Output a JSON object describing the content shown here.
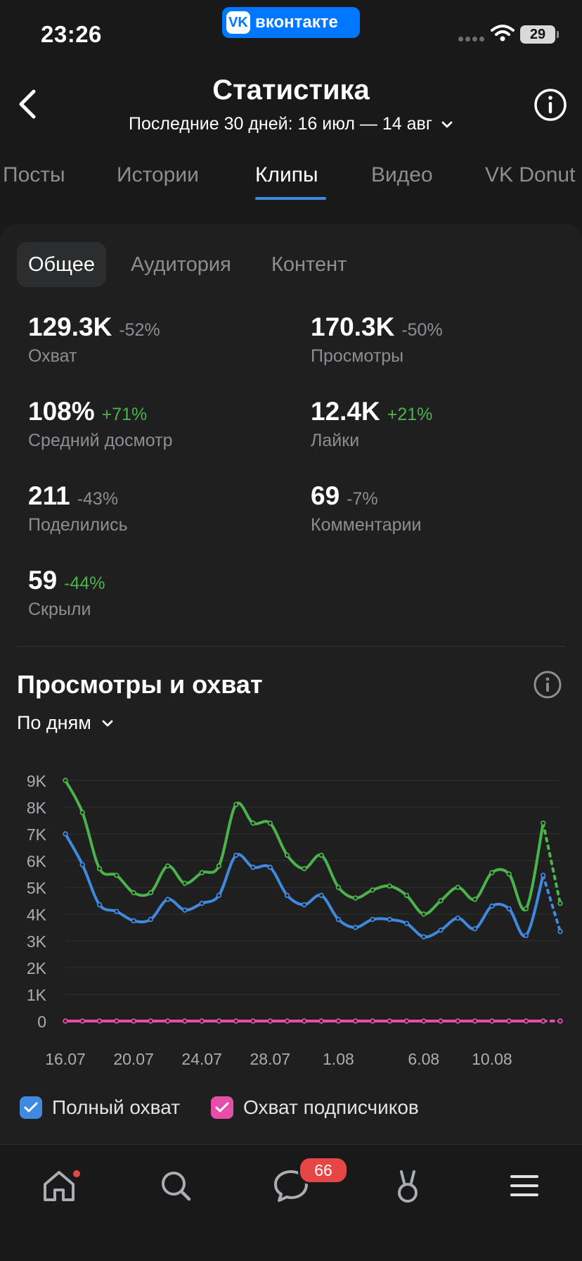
{
  "status_bar": {
    "time": "23:26",
    "app_pill": "вконтакте",
    "app_logo": "VK",
    "battery": "29"
  },
  "header": {
    "title": "Статистика",
    "period": "Последние 30 дней: 16 июл — 14 авг"
  },
  "tabs": [
    {
      "label": "Посты",
      "active": false
    },
    {
      "label": "Истории",
      "active": false
    },
    {
      "label": "Клипы",
      "active": true
    },
    {
      "label": "Видео",
      "active": false
    },
    {
      "label": "VK Donut",
      "active": false
    }
  ],
  "segments": [
    {
      "label": "Общее",
      "active": true
    },
    {
      "label": "Аудитория",
      "active": false
    },
    {
      "label": "Контент",
      "active": false
    }
  ],
  "metrics": [
    {
      "value": "129.3K",
      "delta": "-52%",
      "label": "Охват"
    },
    {
      "value": "170.3K",
      "delta": "-50%",
      "label": "Просмотры"
    },
    {
      "value": "108%",
      "delta": "+71%",
      "label": "Средний досмотр"
    },
    {
      "value": "12.4K",
      "delta": "+21%",
      "label": "Лайки"
    },
    {
      "value": "211",
      "delta": "-43%",
      "label": "Поделились"
    },
    {
      "value": "69",
      "delta": "-7%",
      "label": "Комментарии"
    },
    {
      "value": "59",
      "delta": "-44%",
      "label": "Скрыли"
    }
  ],
  "chart_section": {
    "title": "Просмотры и охват",
    "grouping": "По дням"
  },
  "chart_data": {
    "type": "line",
    "ylim": [
      0,
      9000
    ],
    "y_ticks": [
      "0",
      "1K",
      "2K",
      "3K",
      "4K",
      "5K",
      "6K",
      "7K",
      "8K",
      "9K"
    ],
    "x_ticks": [
      "16.07",
      "20.07",
      "24.07",
      "28.07",
      "1.08",
      "6.08",
      "10.08"
    ],
    "x_tick_index": [
      0,
      4,
      8,
      12,
      16,
      21,
      25
    ],
    "grid": true,
    "projected_last_point": true,
    "series": [
      {
        "key": "green",
        "color": "#4bb34b",
        "values": [
          9000,
          7800,
          5700,
          5450,
          4800,
          4800,
          5800,
          5150,
          5550,
          5800,
          8100,
          7400,
          7400,
          6200,
          5700,
          6200,
          5000,
          4600,
          4900,
          5050,
          4700,
          4000,
          4500,
          5000,
          4550,
          5550,
          5500,
          4200,
          7400,
          4400
        ]
      },
      {
        "key": "blue",
        "color": "#3f8ae0",
        "values": [
          7000,
          5850,
          4350,
          4100,
          3750,
          3800,
          4550,
          4150,
          4400,
          4700,
          6200,
          5750,
          5750,
          4700,
          4350,
          4700,
          3800,
          3500,
          3800,
          3800,
          3650,
          3150,
          3400,
          3850,
          3450,
          4300,
          4200,
          3200,
          5450,
          3350
        ]
      },
      {
        "key": "pink",
        "color": "#e64ea9",
        "values": [
          0,
          0,
          0,
          0,
          0,
          0,
          0,
          0,
          0,
          0,
          0,
          0,
          0,
          0,
          0,
          0,
          0,
          0,
          0,
          0,
          0,
          0,
          0,
          0,
          0,
          0,
          0,
          0,
          0,
          0
        ]
      }
    ]
  },
  "legend": [
    {
      "label": "Полный охват",
      "color": "#3f8ae0"
    },
    {
      "label": "Охват подписчиков",
      "color": "#e64ea9"
    }
  ],
  "bottom_nav": {
    "items": [
      "home-icon",
      "search-icon",
      "messages-icon",
      "clips-icon",
      "menu-icon"
    ],
    "messages_badge": "66"
  }
}
